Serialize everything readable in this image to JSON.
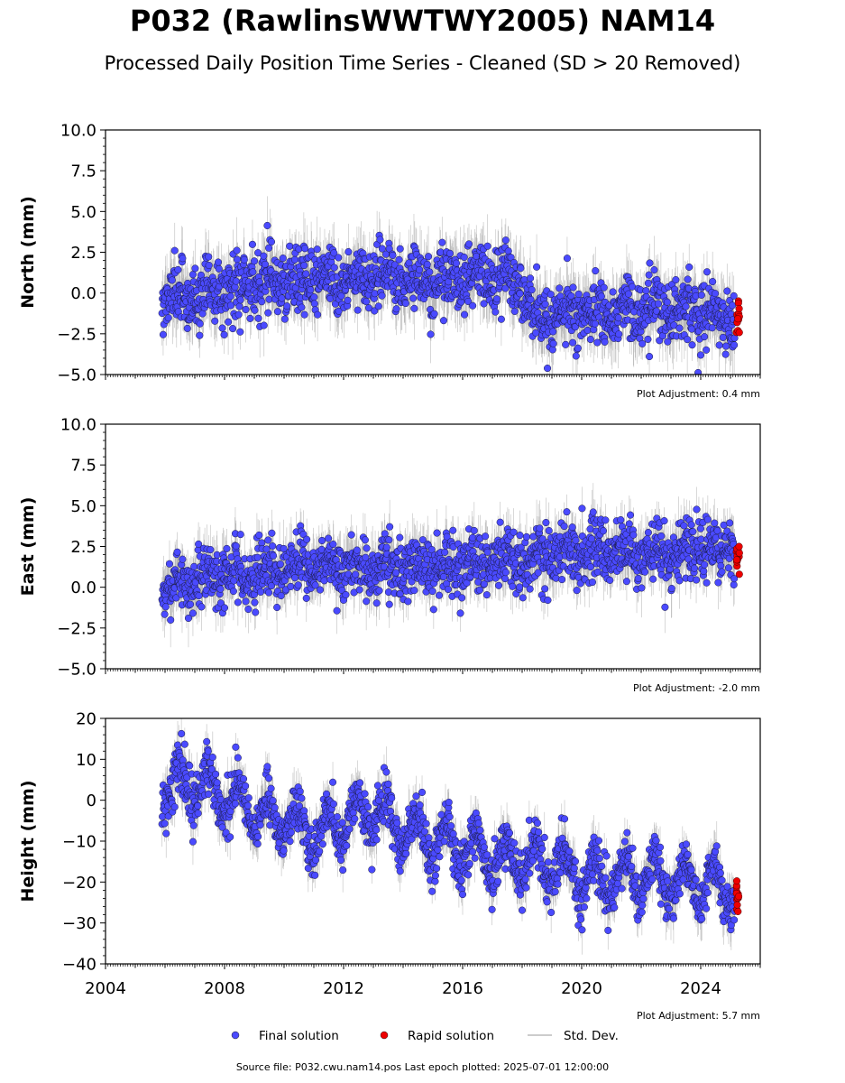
{
  "header": {
    "title": "P032 (RawlinsWWTWY2005) NAM14",
    "subtitle": "Processed Daily Position Time Series - Cleaned (SD > 20 Removed)"
  },
  "footer": {
    "source": "Source file: P032.cwu.nam14.pos  Last epoch plotted: 2025-07-01 12:00:00"
  },
  "legend": {
    "final": "Final solution",
    "rapid": "Rapid solution",
    "std": "Std. Dev."
  },
  "colors": {
    "final": "#4a4aff",
    "rapid": "#ee0000",
    "std": "#9a9a9a"
  },
  "chart_data": [
    {
      "type": "scatter",
      "ylabel": "North (mm)",
      "ylim": [
        -5,
        10
      ],
      "yticks": [
        "10.0",
        "7.5",
        "5.0",
        "2.5",
        "0.0",
        "−2.5",
        "−5.0"
      ],
      "xlim": [
        2004,
        2026
      ],
      "adjustment": "Plot Adjustment: 0.4 mm",
      "series": [
        {
          "name": "Final solution",
          "x": [
            2006.0,
            2007.0,
            2008.0,
            2009.0,
            2010.0,
            2011.0,
            2012.0,
            2013.0,
            2014.0,
            2015.0,
            2016.0,
            2017.0,
            2017.8,
            2018.5,
            2019.5,
            2020.5,
            2021.5,
            2022.5,
            2023.5,
            2024.5,
            2025.0
          ],
          "values": [
            -0.2,
            0.0,
            0.3,
            0.5,
            0.8,
            0.9,
            0.7,
            1.0,
            0.9,
            0.8,
            0.8,
            1.2,
            0.9,
            -1.2,
            -1.5,
            -1.0,
            -1.0,
            -1.1,
            -1.0,
            -1.3,
            -1.5
          ]
        },
        {
          "name": "Rapid solution",
          "x": [
            2025.25
          ],
          "values": [
            -1.4
          ]
        }
      ]
    },
    {
      "type": "scatter",
      "ylabel": "East (mm)",
      "ylim": [
        -5,
        10
      ],
      "yticks": [
        "10.0",
        "7.5",
        "5.0",
        "2.5",
        "0.0",
        "−2.5",
        "−5.0"
      ],
      "xlim": [
        2004,
        2026
      ],
      "adjustment": "Plot Adjustment: -2.0 mm",
      "series": [
        {
          "name": "Final solution",
          "x": [
            2006.0,
            2007.0,
            2008.0,
            2009.0,
            2010.0,
            2011.0,
            2012.0,
            2013.0,
            2014.0,
            2015.0,
            2016.0,
            2017.0,
            2018.0,
            2019.0,
            2020.0,
            2021.0,
            2022.0,
            2023.0,
            2024.0,
            2025.0
          ],
          "values": [
            0.0,
            0.4,
            0.8,
            1.0,
            1.2,
            1.3,
            1.1,
            1.2,
            1.3,
            1.2,
            1.2,
            1.6,
            1.7,
            2.0,
            2.2,
            2.1,
            2.0,
            2.0,
            2.3,
            2.4
          ]
        },
        {
          "name": "Rapid solution",
          "x": [
            2025.25
          ],
          "values": [
            2.1
          ]
        }
      ]
    },
    {
      "type": "scatter",
      "ylabel": "Height (mm)",
      "ylim": [
        -40,
        20
      ],
      "yticks": [
        "20",
        "10",
        "0",
        "−10",
        "−20",
        "−30",
        "−40"
      ],
      "xlim": [
        2004,
        2026
      ],
      "xticks": [
        "2004",
        "2008",
        "2012",
        "2016",
        "2020",
        "2024"
      ],
      "adjustment": "Plot Adjustment: 5.7 mm",
      "series": [
        {
          "name": "Final solution",
          "x": [
            2006.0,
            2007.0,
            2008.0,
            2009.0,
            2010.0,
            2011.0,
            2012.0,
            2013.0,
            2014.0,
            2015.0,
            2016.0,
            2017.0,
            2018.0,
            2019.0,
            2020.0,
            2021.0,
            2022.0,
            2023.0,
            2024.0,
            2025.0
          ],
          "values": [
            3,
            4,
            1,
            -3,
            -5,
            -8,
            -6,
            -2,
            -7,
            -10,
            -12,
            -14,
            -15,
            -16,
            -18,
            -19,
            -19,
            -20,
            -20,
            -21
          ]
        },
        {
          "name": "Rapid solution",
          "x": [
            2025.25
          ],
          "values": [
            -23
          ]
        }
      ]
    }
  ]
}
